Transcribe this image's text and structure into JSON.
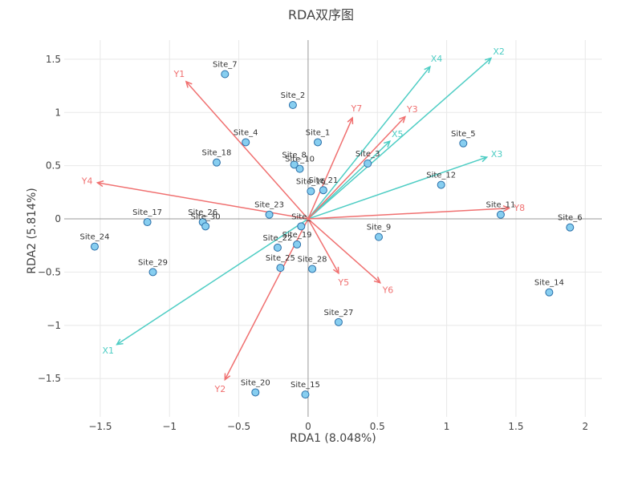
{
  "chart_data": {
    "type": "scatter",
    "title": "RDA双序图",
    "xlabel": "RDA1 (8.048%)",
    "ylabel": "RDA2 (5.814%)",
    "xlim": [
      -1.76,
      2.12
    ],
    "ylim": [
      -1.86,
      1.68
    ],
    "xticks": [
      -1.5,
      -1,
      -0.5,
      0,
      0.5,
      1,
      1.5,
      2
    ],
    "yticks": [
      -1.5,
      -1,
      -0.5,
      0,
      0.5,
      1,
      1.5
    ],
    "xtick_labels": [
      "−1.5",
      "−1",
      "−0.5",
      "0",
      "0.5",
      "1",
      "1.5",
      "2"
    ],
    "ytick_labels": [
      "−1.5",
      "−1",
      "−0.5",
      "0",
      "0.5",
      "1",
      "1.5"
    ],
    "colors": {
      "site_fill": "#87cef0",
      "site_stroke": "#2a6fa8",
      "y_arrow": "#f07070",
      "x_arrow": "#4ecdc4",
      "grid": "#e8e8e8",
      "zero_line": "#999999"
    },
    "sites": [
      {
        "name": "Site_1",
        "x": 0.07,
        "y": 0.72
      },
      {
        "name": "Site_2",
        "x": -0.11,
        "y": 1.07
      },
      {
        "name": "Site_3",
        "x": 0.43,
        "y": 0.52
      },
      {
        "name": "Site_4",
        "x": -0.45,
        "y": 0.72
      },
      {
        "name": "Site_5",
        "x": 1.12,
        "y": 0.71
      },
      {
        "name": "Site_6",
        "x": 1.89,
        "y": -0.08
      },
      {
        "name": "Site_7",
        "x": -0.6,
        "y": 1.36
      },
      {
        "name": "Site_8",
        "x": -0.1,
        "y": 0.51
      },
      {
        "name": "Site_9",
        "x": 0.51,
        "y": -0.17
      },
      {
        "name": "Site_10",
        "x": -0.06,
        "y": 0.47
      },
      {
        "name": "Site_11",
        "x": 1.39,
        "y": 0.04
      },
      {
        "name": "Site_12",
        "x": 0.96,
        "y": 0.32
      },
      {
        "name": "Site_14",
        "x": 1.74,
        "y": -0.69
      },
      {
        "name": "Site_15",
        "x": -0.02,
        "y": -1.65
      },
      {
        "name": "Site_16",
        "x": 0.02,
        "y": 0.26
      },
      {
        "name": "Site_17",
        "x": -1.16,
        "y": -0.03
      },
      {
        "name": "Site_18",
        "x": -0.66,
        "y": 0.53
      },
      {
        "name": "Site_19",
        "x": -0.08,
        "y": -0.24
      },
      {
        "name": "Site_20",
        "x": -0.38,
        "y": -1.63
      },
      {
        "name": "Site_21",
        "x": 0.11,
        "y": 0.27
      },
      {
        "name": "Site_22",
        "x": -0.22,
        "y": -0.27
      },
      {
        "name": "Site_23",
        "x": -0.28,
        "y": 0.04
      },
      {
        "name": "Site_24",
        "x": -1.54,
        "y": -0.26
      },
      {
        "name": "Site_25",
        "x": -0.2,
        "y": -0.46
      },
      {
        "name": "Site_26",
        "x": -0.76,
        "y": -0.03
      },
      {
        "name": "Site_27",
        "x": 0.22,
        "y": -0.97
      },
      {
        "name": "Site_28",
        "x": 0.03,
        "y": -0.47
      },
      {
        "name": "Site_29",
        "x": -1.12,
        "y": -0.5
      },
      {
        "name": "Site_30",
        "x": -0.74,
        "y": -0.07
      },
      {
        "name": "Site_",
        "x": -0.05,
        "y": -0.07
      }
    ],
    "response_arrows": [
      {
        "name": "Y1",
        "x": -0.88,
        "y": 1.29
      },
      {
        "name": "Y2",
        "x": -0.6,
        "y": -1.51
      },
      {
        "name": "Y3",
        "x": 0.7,
        "y": 0.96
      },
      {
        "name": "Y4",
        "x": -1.52,
        "y": 0.34
      },
      {
        "name": "Y5",
        "x": 0.22,
        "y": -0.51
      },
      {
        "name": "Y6",
        "x": 0.52,
        "y": -0.6
      },
      {
        "name": "Y7",
        "x": 0.32,
        "y": 0.95
      },
      {
        "name": "Y8",
        "x": 1.45,
        "y": 0.1
      }
    ],
    "explanatory_arrows": [
      {
        "name": "X1",
        "x": -1.38,
        "y": -1.18
      },
      {
        "name": "X2",
        "x": 1.32,
        "y": 1.51
      },
      {
        "name": "X3",
        "x": 1.29,
        "y": 0.58
      },
      {
        "name": "X4",
        "x": 0.88,
        "y": 1.43
      },
      {
        "name": "X5",
        "x": 0.59,
        "y": 0.73
      }
    ]
  }
}
